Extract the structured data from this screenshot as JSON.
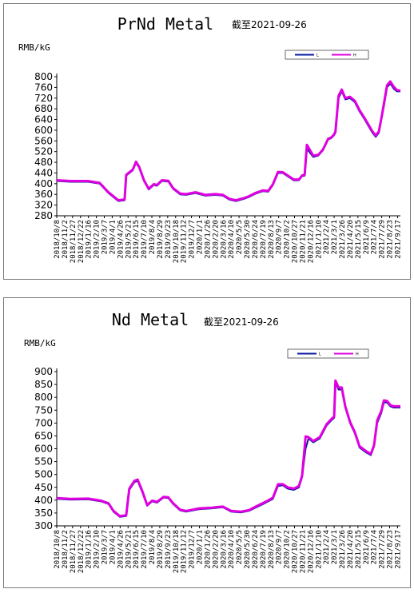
{
  "chart_data": [
    {
      "type": "line",
      "title": "PrNd Metal",
      "subtitle": "截至2021-09-26",
      "ylabel": "RMB/kG",
      "ylim": [
        280,
        800
      ],
      "yticks": [
        280,
        320,
        360,
        400,
        440,
        480,
        520,
        560,
        600,
        640,
        680,
        720,
        760,
        800
      ],
      "grid": false,
      "legend": {
        "position": "top-right",
        "entries": [
          {
            "label": "L",
            "color": "#0a1aa0"
          },
          {
            "label": "H",
            "color": "#e000e0"
          }
        ]
      },
      "x_ticks": [
        "2018/10/8",
        "2018/11/2",
        "2018/11/27",
        "2018/12/22",
        "2019/1/16",
        "2019/2/10",
        "2019/3/7",
        "2019/4/1",
        "2019/4/26",
        "2019/5/21",
        "2019/6/15",
        "2019/7/10",
        "2019/8/4",
        "2019/8/29",
        "2019/9/23",
        "2019/10/18",
        "2019/11/12",
        "2019/12/7",
        "2020/1/1",
        "2020/1/26",
        "2020/2/20",
        "2020/3/16",
        "2020/4/10",
        "2020/5/5",
        "2020/5/30",
        "2020/6/24",
        "2020/7/19",
        "2020/8/13",
        "2020/9/7",
        "2020/10/2",
        "2020/10/27",
        "2020/11/21",
        "2020/12/16",
        "2021/1/10",
        "2021/2/4",
        "2021/3/1",
        "2021/3/26",
        "2021/4/20",
        "2021/5/15",
        "2021/6/9",
        "2021/7/4",
        "2021/7/29",
        "2021/8/23",
        "2021/9/17"
      ],
      "series": [
        {
          "name": "L",
          "color": "#0a1aa0",
          "x": [
            "2018-10-08",
            "2018-11-20",
            "2019-01-15",
            "2019-02-20",
            "2019-03-20",
            "2019-04-20",
            "2019-05-10",
            "2019-05-15",
            "2019-06-05",
            "2019-06-15",
            "2019-06-25",
            "2019-07-10",
            "2019-07-25",
            "2019-08-10",
            "2019-08-20",
            "2019-09-05",
            "2019-09-25",
            "2019-10-10",
            "2019-11-01",
            "2019-11-20",
            "2019-12-20",
            "2020-01-20",
            "2020-02-20",
            "2020-03-15",
            "2020-04-05",
            "2020-04-25",
            "2020-05-20",
            "2020-06-05",
            "2020-06-25",
            "2020-07-20",
            "2020-08-05",
            "2020-08-20",
            "2020-09-05",
            "2020-09-20",
            "2020-10-05",
            "2020-10-25",
            "2020-11-10",
            "2020-11-20",
            "2020-11-28",
            "2020-12-05",
            "2020-12-25",
            "2021-01-10",
            "2021-01-25",
            "2021-02-10",
            "2021-02-20",
            "2021-02-28",
            "2021-03-05",
            "2021-03-15",
            "2021-03-25",
            "2021-04-05",
            "2021-04-20",
            "2021-05-05",
            "2021-05-20",
            "2021-06-05",
            "2021-06-20",
            "2021-06-30",
            "2021-07-10",
            "2021-07-20",
            "2021-07-28",
            "2021-08-05",
            "2021-08-15",
            "2021-08-25",
            "2021-09-05",
            "2021-09-15",
            "2021-09-26"
          ],
          "values": [
            410,
            407,
            407,
            400,
            365,
            335,
            338,
            430,
            450,
            478,
            460,
            410,
            378,
            395,
            392,
            410,
            408,
            380,
            360,
            358,
            365,
            355,
            358,
            355,
            340,
            335,
            343,
            350,
            362,
            372,
            370,
            395,
            440,
            440,
            428,
            412,
            413,
            428,
            430,
            530,
            500,
            505,
            525,
            565,
            570,
            580,
            590,
            720,
            745,
            715,
            720,
            705,
            670,
            640,
            610,
            590,
            575,
            590,
            640,
            690,
            760,
            775,
            755,
            745,
            745
          ]
        },
        {
          "name": "H",
          "color": "#e000e0",
          "x": [
            "2018-10-08",
            "2018-11-20",
            "2019-01-15",
            "2019-02-20",
            "2019-03-20",
            "2019-04-20",
            "2019-05-10",
            "2019-05-15",
            "2019-06-05",
            "2019-06-15",
            "2019-06-25",
            "2019-07-10",
            "2019-07-25",
            "2019-08-10",
            "2019-08-20",
            "2019-09-05",
            "2019-09-25",
            "2019-10-10",
            "2019-11-01",
            "2019-11-20",
            "2019-12-20",
            "2020-01-20",
            "2020-02-20",
            "2020-03-15",
            "2020-04-05",
            "2020-04-25",
            "2020-05-20",
            "2020-06-05",
            "2020-06-25",
            "2020-07-20",
            "2020-08-05",
            "2020-08-20",
            "2020-09-05",
            "2020-09-20",
            "2020-10-05",
            "2020-10-25",
            "2020-11-10",
            "2020-11-20",
            "2020-11-28",
            "2020-12-05",
            "2020-12-25",
            "2021-01-10",
            "2021-01-25",
            "2021-02-10",
            "2021-02-20",
            "2021-02-28",
            "2021-03-05",
            "2021-03-15",
            "2021-03-25",
            "2021-04-05",
            "2021-04-20",
            "2021-05-05",
            "2021-05-20",
            "2021-06-05",
            "2021-06-20",
            "2021-06-30",
            "2021-07-10",
            "2021-07-20",
            "2021-07-28",
            "2021-08-05",
            "2021-08-15",
            "2021-08-25",
            "2021-09-05",
            "2021-09-15",
            "2021-09-26"
          ],
          "values": [
            413,
            410,
            410,
            403,
            368,
            338,
            341,
            433,
            453,
            482,
            463,
            413,
            381,
            398,
            395,
            413,
            411,
            383,
            363,
            361,
            368,
            358,
            361,
            358,
            343,
            338,
            346,
            353,
            365,
            375,
            373,
            398,
            444,
            443,
            431,
            415,
            416,
            431,
            434,
            545,
            505,
            508,
            528,
            568,
            573,
            583,
            594,
            728,
            752,
            720,
            725,
            710,
            675,
            645,
            615,
            595,
            580,
            595,
            645,
            700,
            768,
            782,
            762,
            750,
            748
          ]
        }
      ]
    },
    {
      "type": "line",
      "title": "Nd Metal",
      "subtitle": "截至2021-09-26",
      "ylabel": "RMB/kG",
      "ylim": [
        300,
        900
      ],
      "yticks": [
        300,
        350,
        400,
        450,
        500,
        550,
        600,
        650,
        700,
        750,
        800,
        850,
        900
      ],
      "grid": false,
      "legend": {
        "position": "top-right",
        "entries": [
          {
            "label": "L",
            "color": "#0a1aa0"
          },
          {
            "label": "H",
            "color": "#e000e0"
          }
        ]
      },
      "x_ticks": [
        "2018/10/8",
        "2018/11/2",
        "2018/11/27",
        "2018/12/22",
        "2019/1/16",
        "2019/2/10",
        "2019/3/7",
        "2019/4/1",
        "2019/4/26",
        "2019/5/21",
        "2019/6/15",
        "2019/7/10",
        "2019/8/4",
        "2019/8/29",
        "2019/9/23",
        "2019/10/18",
        "2019/11/12",
        "2019/12/7",
        "2020/1/1",
        "2020/1/26",
        "2020/2/20",
        "2020/3/16",
        "2020/4/10",
        "2020/5/5",
        "2020/5/30",
        "2020/6/24",
        "2020/7/19",
        "2020/8/13",
        "2020/9/7",
        "2020/10/2",
        "2020/10/27",
        "2020/11/21",
        "2020/12/16",
        "2021/1/10",
        "2021/2/4",
        "2021/3/1",
        "2021/3/26",
        "2021/4/20",
        "2021/5/15",
        "2021/6/9",
        "2021/7/4",
        "2021/7/29",
        "2021/8/23",
        "2021/9/17"
      ],
      "series": [
        {
          "name": "L",
          "color": "#0a1aa0",
          "x": [
            "2018-10-08",
            "2018-11-20",
            "2019-01-15",
            "2019-02-25",
            "2019-03-20",
            "2019-04-05",
            "2019-04-25",
            "2019-05-15",
            "2019-05-25",
            "2019-06-10",
            "2019-06-20",
            "2019-07-05",
            "2019-07-20",
            "2019-08-05",
            "2019-08-20",
            "2019-09-10",
            "2019-09-25",
            "2019-10-10",
            "2019-11-01",
            "2019-11-20",
            "2020-01-01",
            "2020-02-10",
            "2020-02-25",
            "2020-03-15",
            "2020-04-10",
            "2020-05-10",
            "2020-06-05",
            "2020-06-25",
            "2020-07-20",
            "2020-08-05",
            "2020-08-20",
            "2020-09-05",
            "2020-09-20",
            "2020-10-05",
            "2020-10-25",
            "2020-11-10",
            "2020-11-20",
            "2020-12-01",
            "2020-12-10",
            "2020-12-25",
            "2021-01-15",
            "2021-02-05",
            "2021-02-20",
            "2021-03-01",
            "2021-03-05",
            "2021-03-15",
            "2021-03-25",
            "2021-04-05",
            "2021-04-20",
            "2021-05-05",
            "2021-05-20",
            "2021-06-10",
            "2021-06-25",
            "2021-07-05",
            "2021-07-15",
            "2021-07-28",
            "2021-08-05",
            "2021-08-15",
            "2021-08-25",
            "2021-09-05",
            "2021-09-26"
          ],
          "values": [
            405,
            402,
            403,
            395,
            385,
            355,
            335,
            338,
            440,
            470,
            475,
            430,
            378,
            395,
            390,
            410,
            408,
            385,
            360,
            355,
            365,
            368,
            370,
            372,
            355,
            352,
            358,
            370,
            385,
            395,
            405,
            455,
            458,
            445,
            440,
            450,
            490,
            600,
            640,
            625,
            640,
            690,
            710,
            720,
            860,
            830,
            830,
            760,
            700,
            660,
            605,
            585,
            575,
            610,
            700,
            740,
            780,
            780,
            765,
            760,
            760
          ]
        },
        {
          "name": "H",
          "color": "#e000e0",
          "x": [
            "2018-10-08",
            "2018-11-20",
            "2019-01-15",
            "2019-02-25",
            "2019-03-20",
            "2019-04-05",
            "2019-04-25",
            "2019-05-15",
            "2019-05-25",
            "2019-06-10",
            "2019-06-20",
            "2019-07-05",
            "2019-07-20",
            "2019-08-05",
            "2019-08-20",
            "2019-09-10",
            "2019-09-25",
            "2019-10-10",
            "2019-11-01",
            "2019-11-20",
            "2020-01-01",
            "2020-02-10",
            "2020-02-25",
            "2020-03-15",
            "2020-04-10",
            "2020-05-10",
            "2020-06-05",
            "2020-06-25",
            "2020-07-20",
            "2020-08-05",
            "2020-08-20",
            "2020-09-05",
            "2020-09-20",
            "2020-10-05",
            "2020-10-25",
            "2020-11-10",
            "2020-11-20",
            "2020-12-01",
            "2020-12-10",
            "2020-12-25",
            "2021-01-15",
            "2021-02-05",
            "2021-02-20",
            "2021-03-01",
            "2021-03-05",
            "2021-03-15",
            "2021-03-25",
            "2021-04-05",
            "2021-04-20",
            "2021-05-05",
            "2021-05-20",
            "2021-06-10",
            "2021-06-25",
            "2021-07-05",
            "2021-07-15",
            "2021-07-28",
            "2021-08-05",
            "2021-08-15",
            "2021-08-25",
            "2021-09-05",
            "2021-09-26"
          ],
          "values": [
            408,
            405,
            406,
            398,
            388,
            358,
            338,
            341,
            445,
            475,
            480,
            435,
            381,
            398,
            393,
            413,
            411,
            388,
            363,
            358,
            368,
            371,
            373,
            375,
            358,
            355,
            361,
            374,
            389,
            399,
            410,
            462,
            462,
            450,
            445,
            455,
            495,
            648,
            645,
            630,
            645,
            695,
            715,
            725,
            865,
            838,
            838,
            765,
            705,
            665,
            610,
            590,
            580,
            615,
            710,
            748,
            788,
            786,
            770,
            765,
            765
          ]
        }
      ]
    }
  ]
}
